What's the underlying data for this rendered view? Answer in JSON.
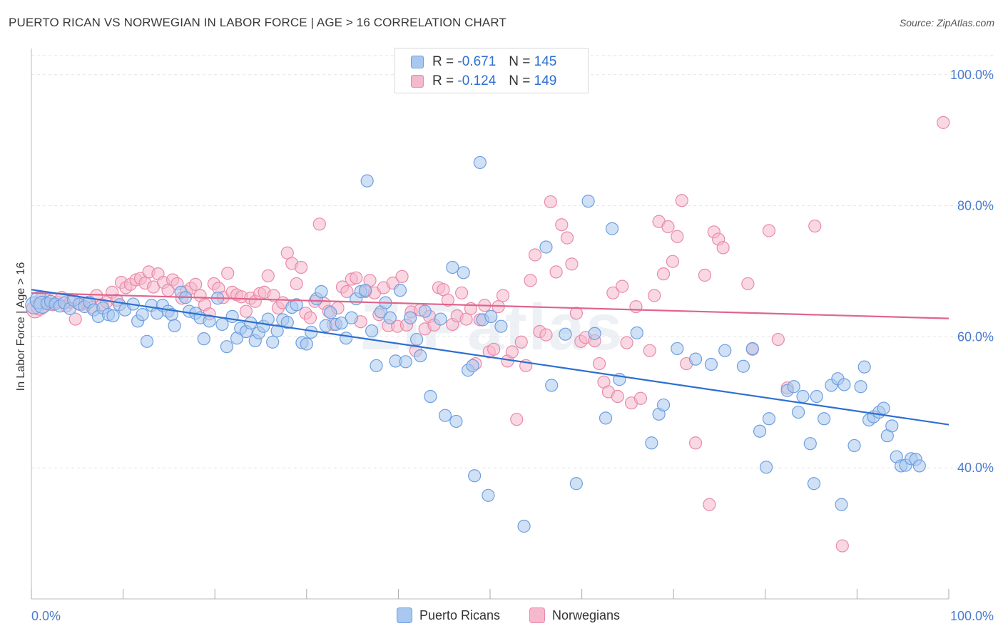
{
  "header": {
    "title": "PUERTO RICAN VS NORWEGIAN IN LABOR FORCE | AGE > 16 CORRELATION CHART",
    "source": "Source: ZipAtlas.com"
  },
  "legend": {
    "rows": [
      {
        "r_label": "R = ",
        "r_value": "-0.671",
        "n_label": "N = ",
        "n_value": "145"
      },
      {
        "r_label": "R = ",
        "r_value": "-0.124",
        "n_label": "N = ",
        "n_value": "149"
      }
    ],
    "bottom": [
      "Puerto Ricans",
      "Norwegians"
    ]
  },
  "watermark": "ZIPatlas",
  "colors": {
    "blue_fill": "#a9c8ef",
    "blue_stroke": "#6d9fe0",
    "blue_line": "#2d6fd1",
    "pink_fill": "#f5b8cc",
    "pink_stroke": "#e98aa8",
    "pink_line": "#e0648d",
    "tick": "#4a7bd0",
    "grid": "#e3e3e3"
  },
  "chart_data": {
    "type": "scatter",
    "title": "PUERTO RICAN VS NORWEGIAN IN LABOR FORCE | AGE > 16 CORRELATION CHART",
    "xlabel": "",
    "ylabel": "In Labor Force | Age > 16",
    "xlim": [
      0,
      100
    ],
    "ylim": [
      20,
      104
    ],
    "x_tick_labels": [
      "0.0%",
      "100.0%"
    ],
    "y_ticks": [
      40,
      60,
      80,
      100
    ],
    "y_tick_labels": [
      "40.0%",
      "60.0%",
      "80.0%",
      "100.0%"
    ],
    "grid": true,
    "legend_position": "top-center",
    "series": [
      {
        "name": "Puerto Ricans",
        "color": "#a9c8ef",
        "trend": {
          "x": [
            0,
            100
          ],
          "y": [
            67.2,
            46.6
          ]
        },
        "points": [
          [
            0.3,
            64.8
          ],
          [
            0.8,
            65.6
          ],
          [
            1.2,
            64.9
          ],
          [
            1.7,
            65.1
          ],
          [
            2.1,
            65.4
          ],
          [
            2.6,
            65.0
          ],
          [
            3.1,
            64.7
          ],
          [
            3.6,
            65.2
          ],
          [
            4.2,
            64.3
          ],
          [
            4.6,
            65.6
          ],
          [
            5.2,
            65.0
          ],
          [
            5.8,
            64.6
          ],
          [
            6.3,
            65.3
          ],
          [
            6.8,
            64.1
          ],
          [
            7.3,
            63.1
          ],
          [
            7.8,
            64.4
          ],
          [
            8.4,
            63.4
          ],
          [
            8.9,
            63.2
          ],
          [
            9.6,
            64.9
          ],
          [
            10.2,
            64.1
          ],
          [
            11.1,
            65.0
          ],
          [
            11.6,
            62.4
          ],
          [
            12.1,
            63.4
          ],
          [
            12.6,
            59.3
          ],
          [
            13.1,
            64.8
          ],
          [
            13.7,
            63.6
          ],
          [
            14.3,
            64.8
          ],
          [
            14.9,
            63.9
          ],
          [
            15.3,
            63.4
          ],
          [
            15.6,
            61.7
          ],
          [
            16.3,
            66.8
          ],
          [
            16.8,
            66.0
          ],
          [
            17.2,
            63.9
          ],
          [
            17.9,
            63.6
          ],
          [
            18.4,
            62.9
          ],
          [
            18.8,
            59.7
          ],
          [
            19.4,
            62.4
          ],
          [
            20.3,
            65.9
          ],
          [
            20.8,
            61.9
          ],
          [
            21.3,
            58.5
          ],
          [
            21.9,
            63.1
          ],
          [
            22.4,
            59.8
          ],
          [
            22.8,
            61.3
          ],
          [
            23.4,
            60.8
          ],
          [
            23.9,
            62.1
          ],
          [
            24.4,
            59.4
          ],
          [
            24.8,
            60.6
          ],
          [
            25.3,
            61.6
          ],
          [
            25.8,
            62.7
          ],
          [
            26.3,
            59.2
          ],
          [
            26.8,
            60.9
          ],
          [
            27.4,
            62.6
          ],
          [
            27.9,
            62.2
          ],
          [
            28.4,
            64.5
          ],
          [
            28.9,
            64.9
          ],
          [
            29.5,
            59.1
          ],
          [
            30.0,
            58.9
          ],
          [
            30.5,
            60.7
          ],
          [
            31.1,
            65.8
          ],
          [
            31.6,
            66.9
          ],
          [
            32.1,
            61.7
          ],
          [
            32.6,
            63.7
          ],
          [
            33.2,
            61.9
          ],
          [
            33.8,
            62.1
          ],
          [
            34.3,
            59.8
          ],
          [
            34.9,
            62.9
          ],
          [
            35.4,
            65.8
          ],
          [
            35.9,
            66.9
          ],
          [
            36.4,
            67.1
          ],
          [
            36.6,
            83.8
          ],
          [
            37.1,
            60.9
          ],
          [
            37.6,
            55.6
          ],
          [
            38.1,
            63.8
          ],
          [
            38.6,
            65.2
          ],
          [
            39.1,
            62.9
          ],
          [
            39.7,
            56.3
          ],
          [
            40.2,
            67.1
          ],
          [
            40.8,
            56.2
          ],
          [
            41.3,
            62.9
          ],
          [
            42.0,
            59.6
          ],
          [
            42.4,
            57.1
          ],
          [
            42.9,
            63.9
          ],
          [
            43.5,
            50.9
          ],
          [
            44.6,
            62.7
          ],
          [
            45.1,
            48.0
          ],
          [
            45.9,
            70.6
          ],
          [
            46.3,
            47.1
          ],
          [
            47.1,
            69.8
          ],
          [
            47.6,
            54.9
          ],
          [
            48.1,
            55.6
          ],
          [
            48.3,
            38.8
          ],
          [
            48.9,
            86.6
          ],
          [
            49.2,
            62.6
          ],
          [
            49.8,
            35.8
          ],
          [
            50.1,
            63.1
          ],
          [
            51.2,
            61.6
          ],
          [
            53.7,
            31.1
          ],
          [
            56.1,
            73.7
          ],
          [
            56.7,
            52.6
          ],
          [
            58.2,
            60.4
          ],
          [
            59.4,
            37.6
          ],
          [
            60.7,
            80.7
          ],
          [
            61.4,
            60.5
          ],
          [
            62.6,
            47.6
          ],
          [
            63.3,
            76.5
          ],
          [
            64.1,
            53.5
          ],
          [
            66.0,
            60.6
          ],
          [
            67.6,
            43.8
          ],
          [
            68.4,
            48.2
          ],
          [
            68.9,
            49.6
          ],
          [
            70.4,
            58.2
          ],
          [
            72.4,
            56.6
          ],
          [
            74.1,
            55.8
          ],
          [
            75.6,
            57.9
          ],
          [
            77.6,
            55.5
          ],
          [
            78.6,
            58.2
          ],
          [
            79.4,
            45.6
          ],
          [
            80.1,
            40.1
          ],
          [
            80.4,
            47.5
          ],
          [
            82.4,
            51.8
          ],
          [
            83.1,
            52.4
          ],
          [
            83.6,
            48.5
          ],
          [
            84.1,
            50.9
          ],
          [
            84.9,
            43.7
          ],
          [
            85.3,
            37.6
          ],
          [
            85.6,
            50.9
          ],
          [
            86.4,
            47.5
          ],
          [
            87.2,
            52.6
          ],
          [
            87.9,
            53.6
          ],
          [
            88.3,
            34.4
          ],
          [
            88.6,
            52.7
          ],
          [
            89.7,
            43.4
          ],
          [
            90.4,
            52.4
          ],
          [
            90.8,
            55.4
          ],
          [
            91.3,
            47.3
          ],
          [
            91.8,
            47.8
          ],
          [
            92.4,
            48.5
          ],
          [
            92.9,
            49.1
          ],
          [
            93.3,
            44.9
          ],
          [
            93.8,
            46.4
          ],
          [
            94.3,
            41.7
          ],
          [
            94.8,
            40.3
          ],
          [
            95.3,
            40.4
          ],
          [
            95.9,
            41.4
          ],
          [
            96.4,
            41.3
          ],
          [
            96.8,
            40.3
          ]
        ]
      },
      {
        "name": "Norwegians",
        "color": "#f5b8cc",
        "trend": {
          "x": [
            0,
            100
          ],
          "y": [
            66.7,
            62.8
          ]
        },
        "points": [
          [
            0.4,
            64.2
          ],
          [
            0.9,
            64.6
          ],
          [
            1.3,
            65.6
          ],
          [
            1.8,
            65.0
          ],
          [
            2.3,
            64.9
          ],
          [
            2.8,
            65.3
          ],
          [
            3.3,
            66.0
          ],
          [
            3.8,
            64.7
          ],
          [
            4.3,
            65.3
          ],
          [
            4.8,
            62.7
          ],
          [
            5.4,
            64.9
          ],
          [
            6.0,
            65.1
          ],
          [
            6.6,
            64.5
          ],
          [
            7.1,
            66.3
          ],
          [
            7.7,
            64.9
          ],
          [
            8.2,
            65.3
          ],
          [
            8.8,
            66.8
          ],
          [
            9.3,
            65.6
          ],
          [
            9.8,
            68.3
          ],
          [
            10.3,
            67.5
          ],
          [
            10.8,
            68.0
          ],
          [
            11.4,
            68.7
          ],
          [
            11.9,
            68.9
          ],
          [
            12.4,
            68.2
          ],
          [
            12.8,
            69.9
          ],
          [
            13.3,
            67.6
          ],
          [
            13.8,
            69.6
          ],
          [
            14.4,
            68.3
          ],
          [
            14.9,
            67.1
          ],
          [
            15.4,
            68.7
          ],
          [
            15.9,
            68.1
          ],
          [
            16.4,
            65.9
          ],
          [
            16.9,
            66.9
          ],
          [
            17.4,
            67.4
          ],
          [
            17.9,
            68.0
          ],
          [
            18.4,
            66.3
          ],
          [
            18.9,
            64.9
          ],
          [
            19.4,
            63.5
          ],
          [
            19.9,
            68.1
          ],
          [
            20.4,
            67.4
          ],
          [
            20.9,
            66.0
          ],
          [
            21.4,
            69.7
          ],
          [
            21.9,
            66.8
          ],
          [
            22.4,
            66.4
          ],
          [
            22.9,
            66.1
          ],
          [
            23.4,
            63.9
          ],
          [
            23.9,
            65.9
          ],
          [
            24.4,
            65.4
          ],
          [
            24.9,
            66.6
          ],
          [
            25.4,
            66.8
          ],
          [
            25.8,
            69.3
          ],
          [
            26.4,
            66.3
          ],
          [
            26.9,
            64.4
          ],
          [
            27.4,
            65.2
          ],
          [
            27.9,
            72.8
          ],
          [
            28.4,
            71.2
          ],
          [
            28.9,
            68.1
          ],
          [
            29.4,
            70.6
          ],
          [
            29.9,
            63.6
          ],
          [
            30.4,
            62.9
          ],
          [
            30.9,
            65.4
          ],
          [
            31.4,
            77.2
          ],
          [
            31.9,
            65.1
          ],
          [
            32.4,
            63.9
          ],
          [
            32.9,
            61.9
          ],
          [
            33.4,
            64.4
          ],
          [
            33.9,
            67.6
          ],
          [
            34.4,
            66.9
          ],
          [
            34.9,
            68.8
          ],
          [
            35.4,
            69.0
          ],
          [
            35.9,
            62.3
          ],
          [
            36.4,
            66.9
          ],
          [
            36.9,
            68.6
          ],
          [
            37.4,
            66.7
          ],
          [
            37.9,
            63.4
          ],
          [
            38.4,
            67.5
          ],
          [
            38.9,
            61.7
          ],
          [
            39.4,
            68.2
          ],
          [
            39.9,
            61.6
          ],
          [
            40.4,
            69.2
          ],
          [
            40.9,
            61.8
          ],
          [
            41.4,
            63.8
          ],
          [
            41.9,
            57.9
          ],
          [
            42.4,
            64.1
          ],
          [
            42.9,
            61.2
          ],
          [
            43.4,
            63.1
          ],
          [
            43.9,
            61.8
          ],
          [
            44.4,
            67.5
          ],
          [
            44.9,
            67.2
          ],
          [
            45.4,
            65.6
          ],
          [
            45.9,
            61.9
          ],
          [
            46.4,
            63.2
          ],
          [
            46.9,
            66.7
          ],
          [
            47.4,
            62.7
          ],
          [
            47.9,
            64.3
          ],
          [
            48.4,
            55.9
          ],
          [
            48.9,
            62.6
          ],
          [
            49.4,
            64.8
          ],
          [
            49.9,
            57.7
          ],
          [
            50.4,
            58.1
          ],
          [
            50.9,
            64.6
          ],
          [
            51.4,
            66.3
          ],
          [
            51.9,
            56.3
          ],
          [
            52.4,
            57.7
          ],
          [
            52.9,
            47.4
          ],
          [
            53.4,
            59.2
          ],
          [
            53.9,
            55.6
          ],
          [
            54.4,
            68.6
          ],
          [
            54.9,
            72.5
          ],
          [
            55.4,
            60.8
          ],
          [
            56.1,
            60.3
          ],
          [
            56.6,
            80.6
          ],
          [
            57.2,
            69.9
          ],
          [
            57.8,
            77.1
          ],
          [
            58.4,
            75.1
          ],
          [
            58.9,
            71.1
          ],
          [
            59.4,
            63.6
          ],
          [
            59.9,
            59.3
          ],
          [
            60.4,
            59.9
          ],
          [
            61.4,
            59.4
          ],
          [
            61.9,
            55.9
          ],
          [
            62.4,
            53.1
          ],
          [
            62.9,
            51.6
          ],
          [
            63.4,
            66.7
          ],
          [
            63.9,
            50.9
          ],
          [
            64.4,
            67.7
          ],
          [
            64.9,
            59.1
          ],
          [
            65.4,
            49.9
          ],
          [
            65.9,
            64.6
          ],
          [
            66.4,
            50.6
          ],
          [
            67.4,
            57.9
          ],
          [
            67.9,
            66.3
          ],
          [
            68.4,
            77.6
          ],
          [
            68.9,
            69.6
          ],
          [
            69.4,
            76.8
          ],
          [
            69.9,
            71.5
          ],
          [
            70.4,
            75.3
          ],
          [
            70.9,
            80.8
          ],
          [
            71.4,
            55.9
          ],
          [
            72.4,
            43.8
          ],
          [
            73.4,
            69.4
          ],
          [
            73.9,
            34.4
          ],
          [
            74.4,
            76.0
          ],
          [
            74.9,
            74.9
          ],
          [
            75.4,
            73.6
          ],
          [
            78.1,
            68.1
          ],
          [
            78.6,
            58.1
          ],
          [
            80.4,
            76.2
          ],
          [
            81.4,
            59.6
          ],
          [
            82.4,
            52.2
          ],
          [
            85.4,
            76.9
          ],
          [
            88.4,
            28.1
          ],
          [
            99.4,
            92.7
          ]
        ]
      }
    ]
  }
}
